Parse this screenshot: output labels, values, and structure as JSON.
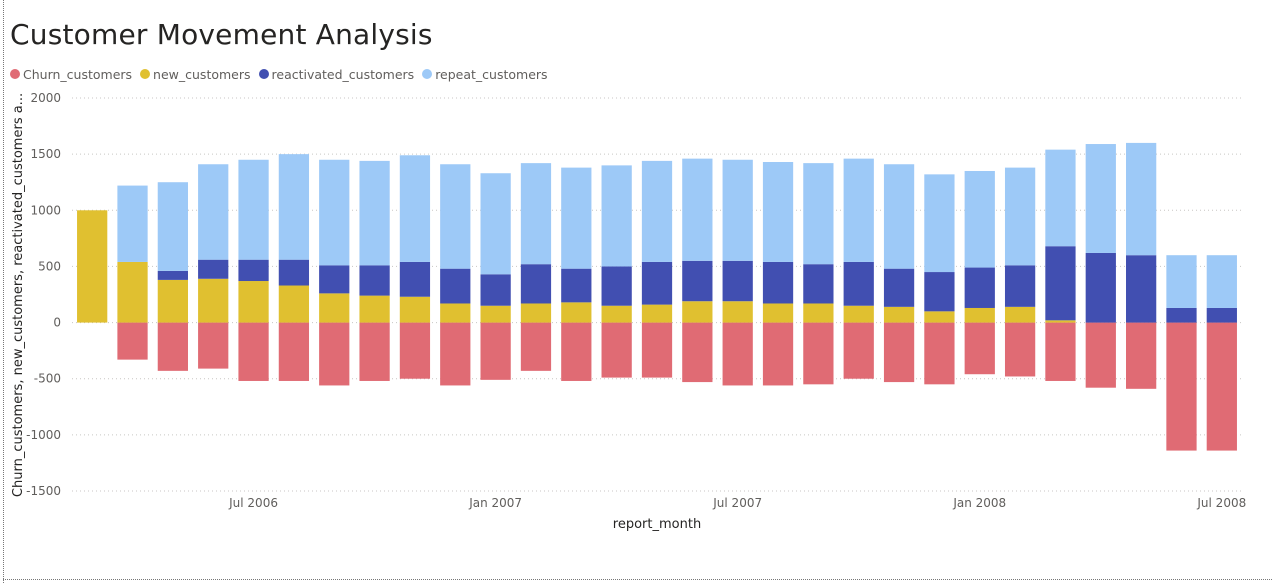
{
  "title": "Customer Movement Analysis",
  "colors": {
    "Churn_customers": "#e06b74",
    "new_customers": "#e0c030",
    "reactivated_customers": "#414fb1",
    "repeat_customers": "#9dc9f7"
  },
  "legend": [
    {
      "name": "Churn_customers",
      "color": "#e06b74"
    },
    {
      "name": "new_customers",
      "color": "#e0c030"
    },
    {
      "name": "reactivated_customers",
      "color": "#414fb1"
    },
    {
      "name": "repeat_customers",
      "color": "#9dc9f7"
    }
  ],
  "chart_data": {
    "type": "bar",
    "stacked": true,
    "title": "Customer Movement Analysis",
    "xlabel": "report_month",
    "ylabel": "Churn_customers, new_customers, reactivated_customers a...",
    "ylim": [
      -1500,
      2000
    ],
    "yticks": [
      2000,
      1500,
      1000,
      500,
      0,
      -500,
      -1000,
      -1500
    ],
    "xtick_labels": [
      {
        "label": "Jul 2006",
        "category": "2006-07"
      },
      {
        "label": "Jan 2007",
        "category": "2007-01"
      },
      {
        "label": "Jul 2007",
        "category": "2007-07"
      },
      {
        "label": "Jan 2008",
        "category": "2008-01"
      },
      {
        "label": "Jul 2008",
        "category": "2008-07"
      }
    ],
    "grid": true,
    "legend_position": "top-left",
    "categories": [
      "2006-03",
      "2006-04",
      "2006-05",
      "2006-06",
      "2006-07",
      "2006-08",
      "2006-09",
      "2006-10",
      "2006-11",
      "2006-12",
      "2007-01",
      "2007-02",
      "2007-03",
      "2007-04",
      "2007-05",
      "2007-06",
      "2007-07",
      "2007-08",
      "2007-09",
      "2007-10",
      "2007-11",
      "2007-12",
      "2008-01",
      "2008-02",
      "2008-03",
      "2008-04",
      "2008-05",
      "2008-06",
      "2008-07"
    ],
    "series": [
      {
        "name": "Churn_customers",
        "values": [
          0,
          -330,
          -430,
          -410,
          -520,
          -520,
          -560,
          -520,
          -500,
          -560,
          -510,
          -430,
          -520,
          -490,
          -490,
          -530,
          -560,
          -560,
          -550,
          -500,
          -530,
          -550,
          -460,
          -480,
          -520,
          -580,
          -590,
          -1140,
          -1140
        ]
      },
      {
        "name": "new_customers",
        "values": [
          1000,
          540,
          380,
          390,
          370,
          330,
          260,
          240,
          230,
          170,
          150,
          170,
          180,
          150,
          160,
          190,
          190,
          170,
          170,
          150,
          140,
          100,
          130,
          140,
          20,
          0,
          0,
          0,
          0
        ]
      },
      {
        "name": "reactivated_customers",
        "values": [
          0,
          0,
          80,
          170,
          190,
          230,
          250,
          270,
          310,
          310,
          280,
          350,
          300,
          350,
          380,
          360,
          360,
          370,
          350,
          390,
          340,
          350,
          360,
          370,
          660,
          620,
          600,
          130,
          130
        ]
      },
      {
        "name": "repeat_customers",
        "values": [
          0,
          680,
          790,
          850,
          890,
          940,
          940,
          930,
          950,
          930,
          900,
          900,
          900,
          900,
          900,
          910,
          900,
          890,
          900,
          920,
          930,
          870,
          860,
          870,
          860,
          970,
          1000,
          470,
          470
        ]
      }
    ]
  }
}
